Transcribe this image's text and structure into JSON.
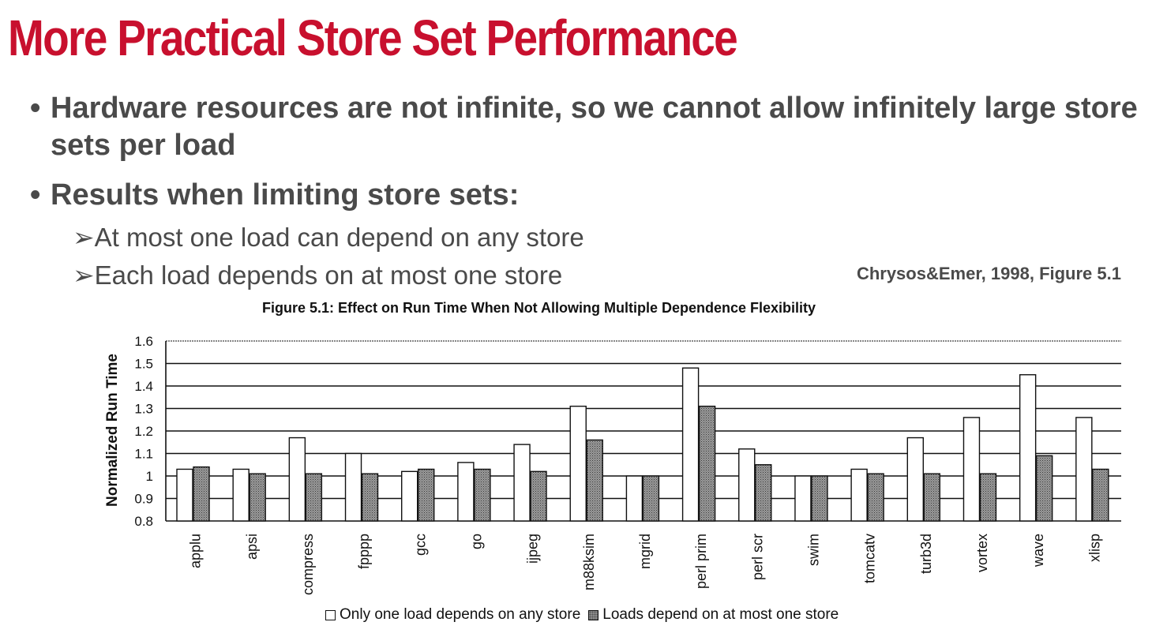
{
  "slide": {
    "title": "More Practical Store Set Performance",
    "bullets": [
      "Hardware resources are not infinite, so we cannot allow infinitely large store sets per load",
      "Results when limiting store sets:"
    ],
    "bullet_marker": "•",
    "sub_bullet_marker": "➢",
    "sub_bullets": [
      "At most one load can depend on any store",
      "Each load depends on at most one store"
    ],
    "citation": "Chrysos&Emer, 1998, Figure 5.1"
  },
  "colors": {
    "title": "#c8102e",
    "text": "#4a4a4a",
    "bar_series_1": "#ffffff",
    "bar_series_2": "#8a8a8a"
  },
  "chart_data": {
    "type": "bar",
    "title": "Figure 5.1: Effect on Run Time When Not Allowing Multiple Dependence Flexibility",
    "xlabel": "",
    "ylabel": "Normalized Run Time",
    "ylim": [
      0.8,
      1.6
    ],
    "yticks": [
      "1.6",
      "1.5",
      "1.4",
      "1.3",
      "1.2",
      "1.1",
      "1",
      "0.9",
      "0.8"
    ],
    "ytick_values": [
      1.6,
      1.5,
      1.4,
      1.3,
      1.2,
      1.1,
      1.0,
      0.9,
      0.8
    ],
    "grid": true,
    "legend_position": "bottom",
    "categories": [
      "applu",
      "apsi",
      "compress",
      "fpppp",
      "gcc",
      "go",
      "ijpeg",
      "m88ksim",
      "mgrid",
      "perl prim",
      "perl scr",
      "swim",
      "tomcatv",
      "turb3d",
      "vortex",
      "wave",
      "xlisp"
    ],
    "series": [
      {
        "name": "Only one load depends on any store",
        "values": [
          1.03,
          1.03,
          1.17,
          1.1,
          1.02,
          1.06,
          1.14,
          1.31,
          1.0,
          1.48,
          1.12,
          1.0,
          1.03,
          1.17,
          1.26,
          1.45,
          1.26
        ]
      },
      {
        "name": "Loads depend on at most one store",
        "values": [
          1.04,
          1.01,
          1.01,
          1.01,
          1.03,
          1.03,
          1.02,
          1.16,
          1.0,
          1.31,
          1.05,
          1.0,
          1.01,
          1.01,
          1.01,
          1.09,
          1.03
        ]
      }
    ]
  }
}
